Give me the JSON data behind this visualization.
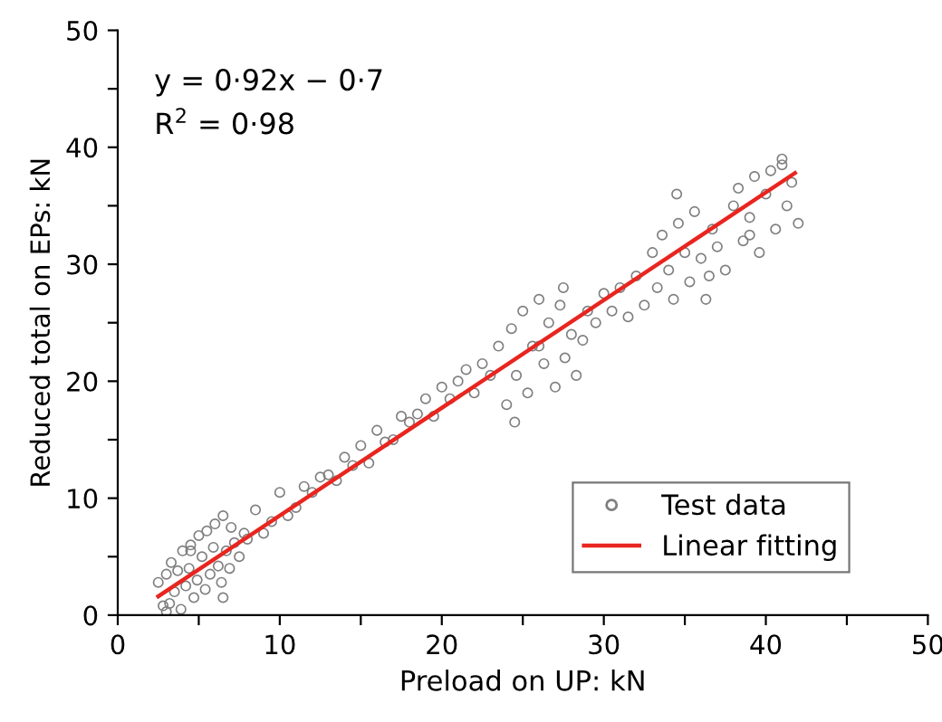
{
  "chart_data": {
    "type": "scatter",
    "xlabel": "Preload on UP: kN",
    "ylabel": "Reduced total on EPs: kN",
    "xlim": [
      0,
      50
    ],
    "ylim": [
      0,
      50
    ],
    "xticks": [
      0,
      {
        "value": 5,
        "label": null
      },
      10,
      {
        "value": 15,
        "label": null
      },
      20,
      {
        "value": 25,
        "label": null
      },
      30,
      {
        "value": 35,
        "label": null
      },
      40,
      {
        "value": 45,
        "label": null
      },
      50
    ],
    "yticks": [
      0,
      {
        "value": 5,
        "label": null
      },
      10,
      {
        "value": 15,
        "label": null
      },
      20,
      {
        "value": 25,
        "label": null
      },
      30,
      {
        "value": 35,
        "label": null
      },
      40,
      {
        "value": 45,
        "label": null
      },
      50
    ],
    "grid": false,
    "legend": "bottom right",
    "annotations": [
      "y = 0·92x − 0·7",
      "R$^{2}$ = 0·98"
    ],
    "series": [
      {
        "name": "Test data",
        "marker": "circle",
        "color": "#7f7f7f",
        "x": [
          2.5,
          2.8,
          3.0,
          3.2,
          3.3,
          3.5,
          3.7,
          3.9,
          4.0,
          4.2,
          4.4,
          4.5,
          4.7,
          4.9,
          5.0,
          5.2,
          5.4,
          5.5,
          5.7,
          5.9,
          6.0,
          6.2,
          6.4,
          6.5,
          6.7,
          6.9,
          7.0,
          7.2,
          7.5,
          7.8,
          8.0,
          8.5,
          9.0,
          9.5,
          10.0,
          10.5,
          11.0,
          11.5,
          12.0,
          12.5,
          13.0,
          13.5,
          14.0,
          14.5,
          15.0,
          15.5,
          16.0,
          16.5,
          17.0,
          17.5,
          18.0,
          18.5,
          19.0,
          19.5,
          20.0,
          20.5,
          21.0,
          21.5,
          22.0,
          22.5,
          23.0,
          23.5,
          24.0,
          24.3,
          24.6,
          25.0,
          25.3,
          25.6,
          26.0,
          26.3,
          26.6,
          27.0,
          27.3,
          27.6,
          28.0,
          28.3,
          28.7,
          29.0,
          29.5,
          30.0,
          30.5,
          31.0,
          31.5,
          32.0,
          32.5,
          33.0,
          33.3,
          33.6,
          34.0,
          34.3,
          34.6,
          35.0,
          35.3,
          35.6,
          36.0,
          36.3,
          36.7,
          37.0,
          37.5,
          38.0,
          38.3,
          38.6,
          39.0,
          39.3,
          39.6,
          40.0,
          40.3,
          40.6,
          41.0,
          41.3,
          41.6,
          42.0,
          3.0,
          4.5,
          6.5,
          24.5,
          26.0,
          27.5,
          34.5,
          36.5,
          39.0,
          41.0
        ],
        "values": [
          2.8,
          0.8,
          3.5,
          1.0,
          4.5,
          2.0,
          3.8,
          0.5,
          5.5,
          2.5,
          4.0,
          6.0,
          1.5,
          3.0,
          6.8,
          5.0,
          2.2,
          7.2,
          3.5,
          5.8,
          7.8,
          4.2,
          2.8,
          8.5,
          5.5,
          4.0,
          7.5,
          6.2,
          5.0,
          7.0,
          6.5,
          9.0,
          7.0,
          8.0,
          10.5,
          8.5,
          9.2,
          11.0,
          10.5,
          11.8,
          12.0,
          11.5,
          13.5,
          12.8,
          14.5,
          13.0,
          15.8,
          14.8,
          15.0,
          17.0,
          16.5,
          17.2,
          18.5,
          17.0,
          19.5,
          18.5,
          20.0,
          21.0,
          19.0,
          21.5,
          20.5,
          23.0,
          18.0,
          24.5,
          20.5,
          26.0,
          19.0,
          23.0,
          27.0,
          21.5,
          25.0,
          19.5,
          26.5,
          22.0,
          24.0,
          20.5,
          23.5,
          26.0,
          25.0,
          27.5,
          26.0,
          28.0,
          25.5,
          29.0,
          26.5,
          31.0,
          28.0,
          32.5,
          29.5,
          27.0,
          33.5,
          31.0,
          28.5,
          34.5,
          30.5,
          27.0,
          33.0,
          31.5,
          29.5,
          35.0,
          36.5,
          32.0,
          34.0,
          37.5,
          31.0,
          36.0,
          38.0,
          33.0,
          39.0,
          35.0,
          37.0,
          33.5,
          0.3,
          5.5,
          1.5,
          16.5,
          23.0,
          28.0,
          36.0,
          29.0,
          32.5,
          38.5
        ]
      },
      {
        "name": "Linear fitting",
        "type": "line",
        "color": "#e8251f",
        "x": [
          2.5,
          41.8
        ],
        "values": [
          1.6,
          37.8
        ]
      }
    ]
  }
}
